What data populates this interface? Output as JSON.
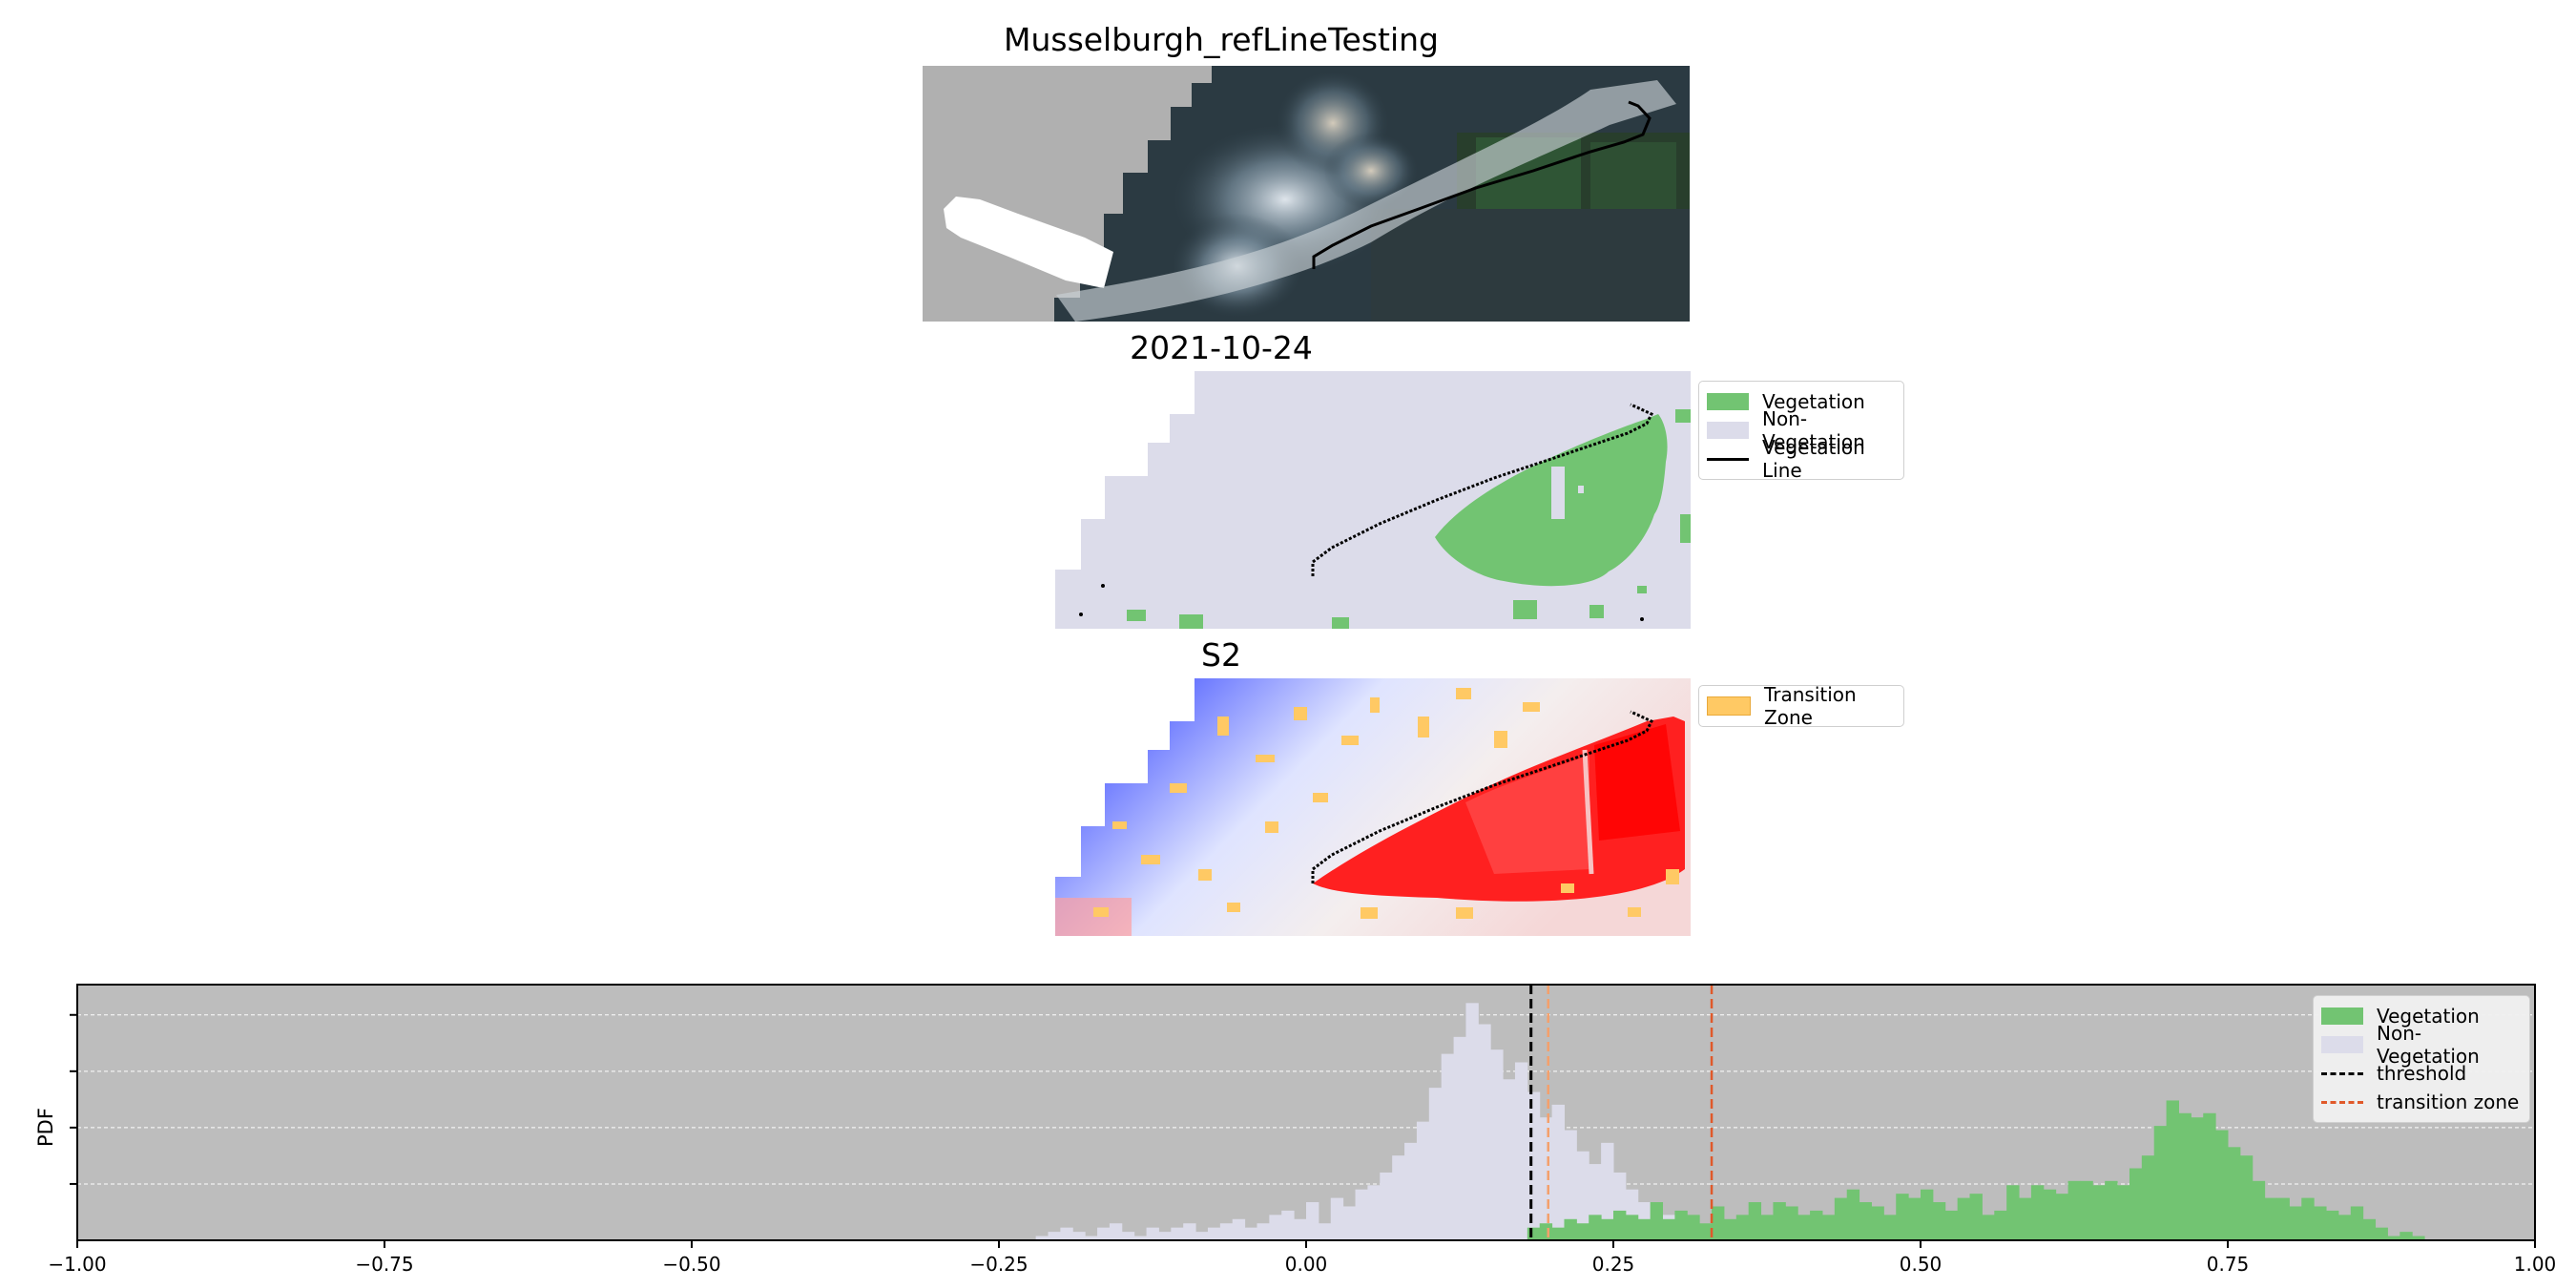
{
  "titles": {
    "main": "Musselburgh_refLineTesting",
    "date": "2021-10-24",
    "sensor": "S2"
  },
  "classification_legend": {
    "vegetation": "Vegetation",
    "non_vegetation": "Non-Vegetation",
    "vegetation_line": "Vegetation Line"
  },
  "index_legend": {
    "transition_zone": "Transition Zone"
  },
  "colors": {
    "vegetation": "#72c472",
    "non_vegetation": "#dcdcea",
    "line": "#000000",
    "transition_zone": "#ffc964",
    "hist_bg": "#bdbdbd",
    "threshold": "#000000",
    "transition_line": "#e0592a",
    "transition_line_light": "#f4a06b"
  },
  "chart_data": {
    "type": "histogram",
    "xlim": [
      -1.0,
      1.0
    ],
    "xticks": [
      "−1.00",
      "−0.75",
      "−0.50",
      "−0.25",
      "0.00",
      "0.25",
      "0.50",
      "0.75",
      "1.00"
    ],
    "ylabel": "PDF",
    "grid": "horizontal dashed",
    "legend_position": "top-right",
    "legend": {
      "vegetation": "Vegetation",
      "non_vegetation": "Non-Vegetation",
      "threshold": "threshold",
      "transition_zone": "transition zone"
    },
    "threshold": 0.183,
    "transition_zone": [
      0.197,
      0.33
    ],
    "bin_width": 0.01,
    "non_vegetation": {
      "start": -0.22,
      "density": [
        0.1,
        0.2,
        0.3,
        0.2,
        0.1,
        0.3,
        0.4,
        0.2,
        0.1,
        0.3,
        0.2,
        0.3,
        0.4,
        0.2,
        0.3,
        0.4,
        0.5,
        0.3,
        0.4,
        0.6,
        0.7,
        0.5,
        0.9,
        0.4,
        1.0,
        0.8,
        1.2,
        1.3,
        1.6,
        2.0,
        2.3,
        2.8,
        3.6,
        4.4,
        4.8,
        5.6,
        5.1,
        4.5,
        3.8,
        4.2,
        3.5,
        2.9,
        3.2,
        2.6,
        2.1,
        1.8,
        2.3,
        1.6,
        1.2,
        0.9,
        0.8,
        0.6,
        0.5,
        0.4,
        0.3,
        0.2,
        0.3,
        0.2,
        0.2,
        0.1,
        0.1
      ]
    },
    "vegetation": {
      "start": 0.18,
      "density": [
        0.3,
        0.4,
        0.3,
        0.5,
        0.4,
        0.6,
        0.5,
        0.7,
        0.6,
        0.5,
        0.9,
        0.5,
        0.7,
        0.6,
        0.4,
        0.8,
        0.5,
        0.6,
        0.9,
        0.6,
        0.9,
        0.8,
        0.6,
        0.7,
        0.6,
        1.0,
        1.2,
        0.9,
        0.8,
        0.6,
        1.1,
        1.0,
        1.2,
        0.9,
        0.7,
        1.0,
        1.1,
        0.6,
        0.7,
        1.3,
        1.0,
        1.3,
        1.2,
        1.1,
        1.4,
        1.4,
        1.3,
        1.4,
        1.3,
        1.7,
        2.0,
        2.7,
        3.3,
        3.0,
        2.9,
        3.0,
        2.6,
        2.2,
        2.0,
        1.4,
        1.0,
        1.0,
        0.8,
        1.0,
        0.8,
        0.7,
        0.6,
        0.8,
        0.5,
        0.3,
        0.1,
        0.2,
        0.1
      ]
    }
  }
}
